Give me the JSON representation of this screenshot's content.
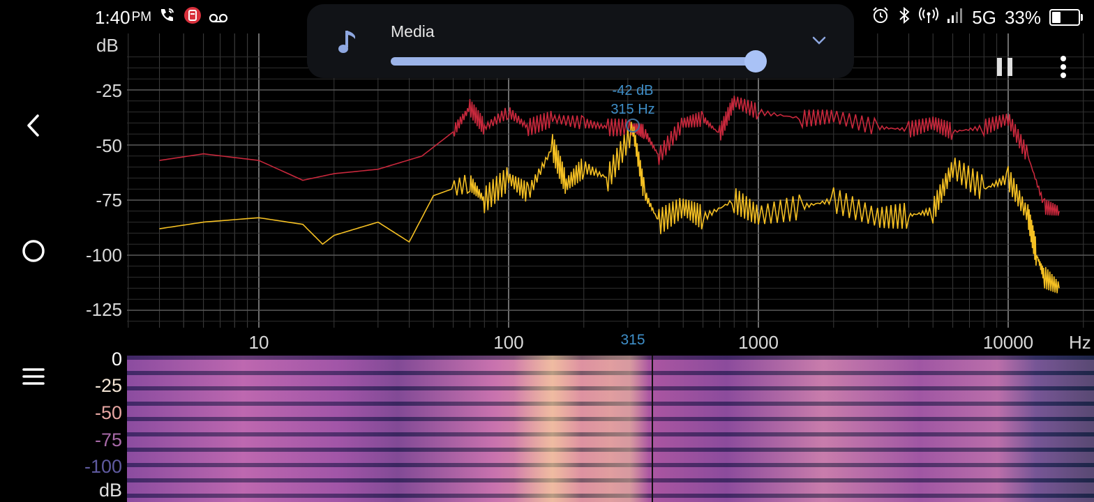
{
  "status_bar": {
    "time": "1:40",
    "ampm": "PM",
    "network": "5G",
    "battery": "33%",
    "battery_level": 0.33
  },
  "volume_panel": {
    "label": "Media",
    "level": 0.98,
    "icon": "music-note-icon"
  },
  "spectrum": {
    "y_unit": "dB",
    "y_ticks": [
      "-25",
      "-50",
      "-75",
      "-100",
      "-125"
    ],
    "x_unit": "Hz",
    "x_ticks": [
      "10",
      "100",
      "1000",
      "10000"
    ],
    "cursor_tick": "315",
    "peak_db": "-42 dB",
    "peak_hz": "315 Hz"
  },
  "spectrogram": {
    "y_unit": "dB",
    "y_ticks": [
      "0",
      "-25",
      "-50",
      "-75",
      "-100"
    ]
  },
  "chart_data": {
    "type": "line",
    "x_scale": "log",
    "xlim": [
      4,
      16000
    ],
    "ylim": [
      -135,
      -5
    ],
    "series": [
      {
        "color": "#c8283c",
        "x": [
          4,
          6,
          10,
          15,
          20,
          30,
          45,
          60,
          70,
          80,
          100,
          120,
          150,
          200,
          250,
          315,
          350,
          400,
          500,
          600,
          700,
          800,
          1000,
          1500,
          2000,
          3000,
          4000,
          5000,
          6000,
          8000,
          10000,
          12000,
          14000,
          16000
        ],
        "y": [
          -57,
          -54,
          -57,
          -66,
          -63,
          -61,
          -55,
          -44,
          -33,
          -42,
          -35,
          -42,
          -38,
          -40,
          -42,
          -42,
          -44,
          -55,
          -40,
          -38,
          -45,
          -30,
          -35,
          -38,
          -37,
          -42,
          -43,
          -40,
          -44,
          -42,
          -38,
          -55,
          -78,
          -80
        ]
      },
      {
        "color": "#f5c023",
        "x": [
          4,
          6,
          10,
          15,
          18,
          20,
          30,
          40,
          50,
          70,
          80,
          100,
          120,
          150,
          170,
          200,
          250,
          315,
          350,
          400,
          500,
          600,
          800,
          1000,
          1500,
          2000,
          3000,
          4000,
          5000,
          6000,
          8000,
          10000,
          12000,
          13000,
          14000,
          16000
        ],
        "y": [
          -88,
          -85,
          -83,
          -86,
          -95,
          -91,
          -85,
          -94,
          -73,
          -67,
          -75,
          -65,
          -72,
          -51,
          -68,
          -60,
          -65,
          -43,
          -72,
          -85,
          -78,
          -83,
          -75,
          -82,
          -78,
          -75,
          -83,
          -82,
          -80,
          -60,
          -70,
          -65,
          -82,
          -100,
          -110,
          -115
        ]
      }
    ]
  }
}
